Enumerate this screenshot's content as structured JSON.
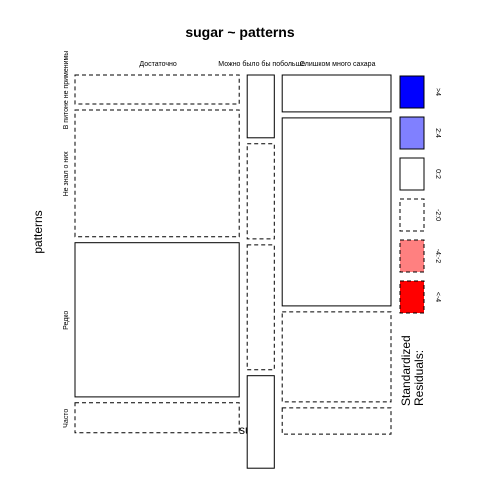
{
  "chart_data": {
    "type": "mosaic",
    "title": "sugar ~ patterns",
    "xlabel": "sugar",
    "ylabel": "patterns",
    "x_levels": [
      "Достаточно",
      "Можно было бы побольше",
      "Слишком много сахара"
    ],
    "y_levels": [
      "В питоне не применимы",
      "Не знал о них",
      "Редко",
      "Часто"
    ],
    "column_widths": [
      0.543,
      0.095,
      0.362
    ],
    "cell_fractions": [
      [
        0.095,
        0.404,
        0.491,
        0.098
      ],
      [
        0.202,
        0.304,
        0.398,
        0.296
      ],
      [
        0.12,
        0.598,
        0.288,
        0.086
      ]
    ],
    "residual_sign": [
      [
        "neg",
        "neg",
        "pos",
        "neg"
      ],
      [
        "pos",
        "neg",
        "neg",
        "pos"
      ],
      [
        "pos",
        "pos",
        "neg",
        "neg"
      ]
    ],
    "legend": {
      "title": "Standardized\nResiduals:",
      "entries": [
        {
          "label": ">4",
          "color": "#0000ff",
          "dashed": false
        },
        {
          "label": "2:4",
          "color": "#8080ff",
          "dashed": false
        },
        {
          "label": "0:2",
          "color": "#ffffff",
          "dashed": false
        },
        {
          "label": "-2:0",
          "color": "#ffffff",
          "dashed": true
        },
        {
          "label": "-4:-2",
          "color": "#ff8080",
          "dashed": true
        },
        {
          "label": "<-4",
          "color": "#ff0000",
          "dashed": true
        }
      ]
    }
  }
}
